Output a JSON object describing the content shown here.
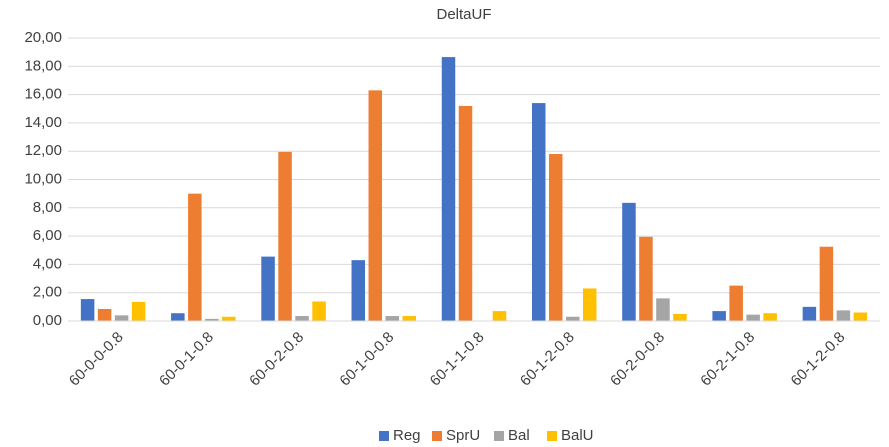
{
  "chart_data": {
    "type": "bar",
    "title": "DeltaUF",
    "categories": [
      "60-0-0-0.8",
      "60-0-1-0.8",
      "60-0-2-0.8",
      "60-1-0-0.8",
      "60-1-1-0.8",
      "60-1-2-0.8",
      "60-2-0-0.8",
      "60-2-1-0.8",
      "60-1-2-0.8"
    ],
    "series": [
      {
        "name": "Reg",
        "color": "#4472c4",
        "values": [
          1.55,
          0.55,
          4.55,
          4.3,
          18.65,
          15.4,
          8.35,
          0.7,
          1.0
        ]
      },
      {
        "name": "SprU",
        "color": "#ed7d31",
        "values": [
          0.85,
          9.0,
          11.95,
          16.3,
          15.2,
          11.8,
          5.95,
          2.5,
          5.25
        ]
      },
      {
        "name": "Bal",
        "color": "#a5a5a5",
        "values": [
          0.4,
          0.15,
          0.35,
          0.35,
          0,
          0.3,
          1.6,
          0.45,
          0.75
        ]
      },
      {
        "name": "BalU",
        "color": "#ffc000",
        "values": [
          1.35,
          0.3,
          1.38,
          0.35,
          0.7,
          2.3,
          0.5,
          0.55,
          0.6
        ]
      }
    ],
    "ylim": [
      0,
      20
    ],
    "yticks": [
      {
        "value": 0,
        "label": "0,00"
      },
      {
        "value": 2,
        "label": "2,00"
      },
      {
        "value": 4,
        "label": "4,00"
      },
      {
        "value": 6,
        "label": "6,00"
      },
      {
        "value": 8,
        "label": "8,00"
      },
      {
        "value": 10,
        "label": "10,00"
      },
      {
        "value": 12,
        "label": "12,00"
      },
      {
        "value": 14,
        "label": "14,00"
      },
      {
        "value": 16,
        "label": "16,00"
      },
      {
        "value": 18,
        "label": "18,00"
      },
      {
        "value": 20,
        "label": "20,00"
      }
    ],
    "grid": true,
    "legend": "bottom"
  }
}
